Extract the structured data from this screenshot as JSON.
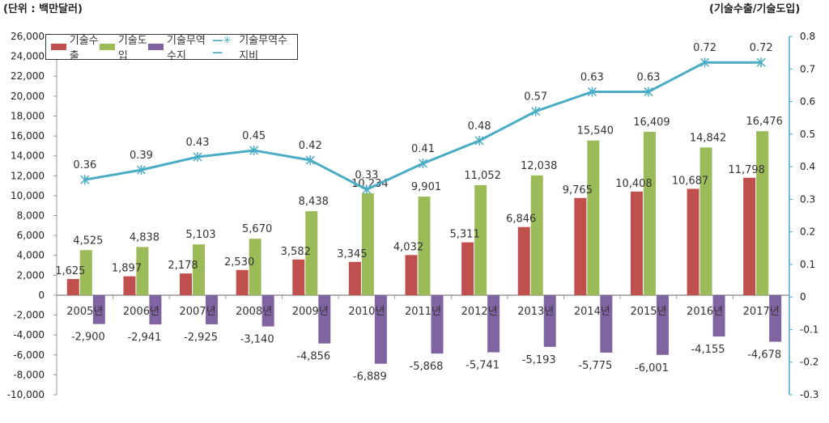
{
  "chart_data": {
    "type": "bar",
    "left_unit": "(단위 : 백만달러)",
    "right_unit": "(기술수출/기술도입)",
    "categories": [
      "2005년",
      "2006년",
      "2007년",
      "2008년",
      "2009년",
      "2010년",
      "2011년",
      "2012년",
      "2013년",
      "2014년",
      "2015년",
      "2016년",
      "2017년"
    ],
    "series": [
      {
        "name": "기술수출",
        "type": "bar",
        "axis": "left",
        "color": "#c0504d",
        "values": [
          1625,
          1897,
          2178,
          2530,
          3582,
          3345,
          4032,
          5311,
          6846,
          9765,
          10408,
          10687,
          11798
        ],
        "labels": [
          "1,625",
          "1,897",
          "2,178",
          "2,530",
          "3,582",
          "3,345",
          "4,032",
          "5,311",
          "6,846",
          "9,765",
          "10,408",
          "10,687",
          "11,798"
        ]
      },
      {
        "name": "기술도입",
        "type": "bar",
        "axis": "left",
        "color": "#9bbb59",
        "values": [
          4525,
          4838,
          5103,
          5670,
          8438,
          10234,
          9901,
          11052,
          12038,
          15540,
          16409,
          14842,
          16476
        ],
        "labels": [
          "4,525",
          "4,838",
          "5,103",
          "5,670",
          "8,438",
          "10,234",
          "9,901",
          "11,052",
          "12,038",
          "15,540",
          "16,409",
          "14,842",
          "16,476"
        ]
      },
      {
        "name": "기술무역수지",
        "type": "bar",
        "axis": "left",
        "color": "#8064a2",
        "values": [
          -2900,
          -2941,
          -2925,
          -3140,
          -4856,
          -6889,
          -5868,
          -5741,
          -5193,
          -5775,
          -6001,
          -4155,
          -4678
        ],
        "labels": [
          "-2,900",
          "-2,941",
          "-2,925",
          "-3,140",
          "-4,856",
          "-6,889",
          "-5,868",
          "-5,741",
          "-5,193",
          "-5,775",
          "-6,001",
          "-4,155",
          "-4,678"
        ]
      },
      {
        "name": "기술무역수지비",
        "type": "line",
        "axis": "right",
        "color": "#4bacc6",
        "values": [
          0.36,
          0.39,
          0.43,
          0.45,
          0.42,
          0.33,
          0.41,
          0.48,
          0.57,
          0.63,
          0.63,
          0.72,
          0.72
        ],
        "labels": [
          "0.36",
          "0.39",
          "0.43",
          "0.45",
          "0.42",
          "0.33",
          "0.41",
          "0.48",
          "0.57",
          "0.63",
          "0.63",
          "0.72",
          "0.72"
        ]
      }
    ],
    "left_ylim": [
      -10000,
      26000
    ],
    "left_ticks": [
      "26,000",
      "24,000",
      "22,000",
      "20,000",
      "18,000",
      "16,000",
      "14,000",
      "12,000",
      "10,000",
      "8,000",
      "6,000",
      "4,000",
      "2,000",
      "0",
      "-2,000",
      "-4,000",
      "-6,000",
      "-8,000",
      "-10,000"
    ],
    "right_ylim": [
      -0.3,
      0.8
    ],
    "right_ticks": [
      "0.8",
      "0.7",
      "0.6",
      "0.5",
      "0.4",
      "0.3",
      "0.2",
      "0.1",
      "0",
      "-0.1",
      "-0.2",
      "-0.3"
    ],
    "grid": false,
    "legend": "top-left"
  }
}
